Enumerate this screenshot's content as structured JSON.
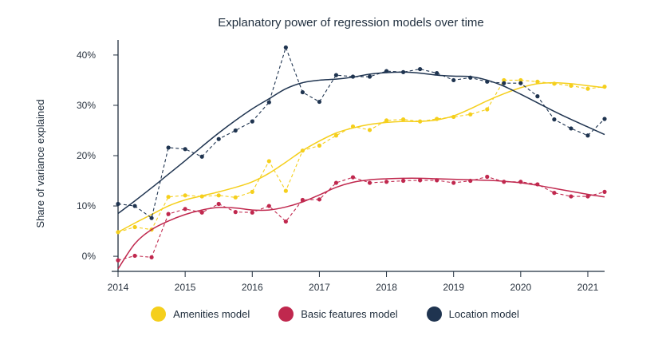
{
  "chart_data": {
    "type": "line",
    "title": "Explanatory power of regression models over time",
    "xlabel": "",
    "ylabel": "Share of variance explained",
    "xlim": [
      2014,
      2021.25
    ],
    "ylim": [
      -0.03,
      0.43
    ],
    "xticks": [
      2014,
      2015,
      2016,
      2017,
      2018,
      2019,
      2020,
      2021
    ],
    "xtick_labels": [
      "2014",
      "2015",
      "2016",
      "2017",
      "2018",
      "2019",
      "2020",
      "2021"
    ],
    "yticks": [
      0,
      0.1,
      0.2,
      0.3,
      0.4
    ],
    "ytick_labels": [
      "0%",
      "10%",
      "20%",
      "30%",
      "40%"
    ],
    "grid": false,
    "legend_position": "bottom",
    "x": [
      2014,
      2014.25,
      2014.5,
      2014.75,
      2015,
      2015.25,
      2015.5,
      2015.75,
      2016,
      2016.25,
      2016.5,
      2016.75,
      2017,
      2017.25,
      2017.5,
      2017.75,
      2018,
      2018.25,
      2018.5,
      2018.75,
      2019,
      2019.25,
      2019.5,
      2019.75,
      2020,
      2020.25,
      2020.5,
      2020.75,
      2021,
      2021.25
    ],
    "series": [
      {
        "name": "Amenities model",
        "color": "#f5cf1c",
        "values": [
          0.048,
          0.058,
          0.053,
          0.118,
          0.121,
          0.119,
          0.121,
          0.117,
          0.128,
          0.189,
          0.13,
          0.21,
          0.22,
          0.24,
          0.258,
          0.251,
          0.27,
          0.272,
          0.268,
          0.273,
          0.277,
          0.282,
          0.292,
          0.35,
          0.35,
          0.347,
          0.343,
          0.339,
          0.333,
          0.337
        ],
        "trend": [
          0.048,
          0.066,
          0.083,
          0.1,
          0.112,
          0.12,
          0.128,
          0.137,
          0.148,
          0.165,
          0.187,
          0.21,
          0.229,
          0.245,
          0.255,
          0.262,
          0.266,
          0.268,
          0.268,
          0.271,
          0.279,
          0.293,
          0.309,
          0.323,
          0.335,
          0.343,
          0.345,
          0.343,
          0.339,
          0.335
        ]
      },
      {
        "name": "Basic features model",
        "color": "#c0284e",
        "values": [
          -0.008,
          0.001,
          -0.002,
          0.084,
          0.094,
          0.087,
          0.104,
          0.088,
          0.087,
          0.1,
          0.069,
          0.112,
          0.113,
          0.146,
          0.157,
          0.146,
          0.148,
          0.15,
          0.151,
          0.151,
          0.146,
          0.15,
          0.158,
          0.148,
          0.148,
          0.143,
          0.126,
          0.119,
          0.119,
          0.128
        ],
        "trend": [
          -0.025,
          0.025,
          0.053,
          0.07,
          0.083,
          0.092,
          0.097,
          0.096,
          0.092,
          0.092,
          0.098,
          0.108,
          0.122,
          0.137,
          0.147,
          0.152,
          0.154,
          0.155,
          0.155,
          0.154,
          0.153,
          0.152,
          0.151,
          0.149,
          0.146,
          0.141,
          0.135,
          0.129,
          0.123,
          0.118
        ]
      },
      {
        "name": "Location model",
        "color": "#1f3450",
        "values": [
          0.104,
          0.1,
          0.076,
          0.216,
          0.213,
          0.198,
          0.233,
          0.25,
          0.268,
          0.306,
          0.415,
          0.326,
          0.307,
          0.36,
          0.357,
          0.357,
          0.368,
          0.366,
          0.372,
          0.364,
          0.35,
          0.355,
          0.347,
          0.344,
          0.344,
          0.318,
          0.272,
          0.254,
          0.24,
          0.273
        ],
        "trend": [
          0.085,
          0.11,
          0.136,
          0.163,
          0.19,
          0.218,
          0.245,
          0.27,
          0.293,
          0.313,
          0.333,
          0.345,
          0.35,
          0.352,
          0.356,
          0.362,
          0.365,
          0.366,
          0.364,
          0.36,
          0.358,
          0.357,
          0.35,
          0.338,
          0.322,
          0.305,
          0.288,
          0.272,
          0.257,
          0.242
        ]
      }
    ]
  }
}
